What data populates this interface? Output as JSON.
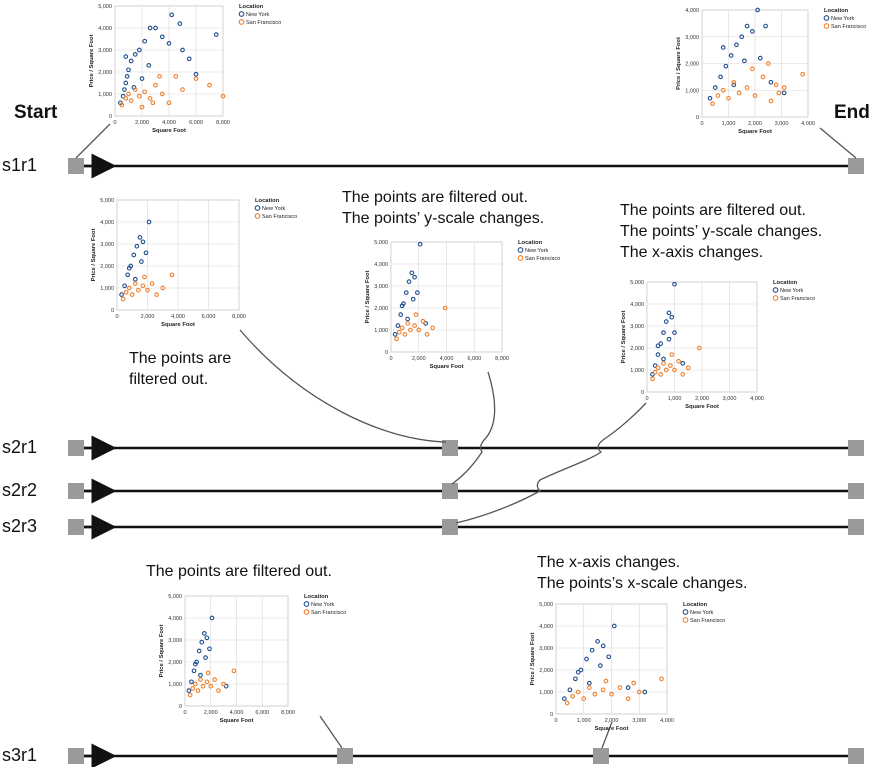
{
  "labels": {
    "start": "Start",
    "end": "End"
  },
  "rows": [
    "s1r1",
    "s2r1",
    "s2r2",
    "s2r3",
    "s3r1"
  ],
  "captions": {
    "c_s2_left": [
      "The points are",
      "filtered out."
    ],
    "c_s2_mid": [
      "The points are filtered out.",
      "The points’ y-scale changes."
    ],
    "c_s2_right": [
      "The points are filtered out.",
      "The points’ y-scale changes.",
      "The x-axis changes."
    ],
    "c_s3_left": [
      "The points are filtered out."
    ],
    "c_s3_right": [
      "The x-axis changes.",
      "The points’s x-scale changes."
    ]
  },
  "chart_common": {
    "x_label": "Square Foot",
    "y_label": "Price / Square Foot",
    "legend_title": "Location",
    "legend_items": [
      "New York",
      "San Francisco"
    ],
    "colors": {
      "new_york": "#1f4e8c",
      "san_francisco": "#f07f2a"
    }
  },
  "chart_data": [
    {
      "id": "start",
      "type": "scatter",
      "xlim": [
        0,
        8000
      ],
      "ylim": [
        0,
        5000
      ],
      "x_ticks": [
        "0",
        "2,000",
        "4,000",
        "6,000",
        "8,000"
      ],
      "y_ticks": [
        "0",
        "1,000",
        "2,000",
        "3,000",
        "4,000",
        "5,000"
      ],
      "series": [
        {
          "name": "New York",
          "points": [
            [
              400,
              600
            ],
            [
              600,
              900
            ],
            [
              700,
              1200
            ],
            [
              800,
              1500
            ],
            [
              900,
              1800
            ],
            [
              1000,
              2100
            ],
            [
              1200,
              2500
            ],
            [
              1500,
              2800
            ],
            [
              1800,
              3000
            ],
            [
              2200,
              3400
            ],
            [
              2600,
              4000
            ],
            [
              3000,
              4000
            ],
            [
              3500,
              3600
            ],
            [
              4000,
              3300
            ],
            [
              4200,
              4600
            ],
            [
              4800,
              4200
            ],
            [
              5000,
              3000
            ],
            [
              5500,
              2600
            ],
            [
              6000,
              1900
            ],
            [
              7500,
              3700
            ],
            [
              800,
              2700
            ],
            [
              1400,
              1300
            ],
            [
              2000,
              1700
            ],
            [
              2500,
              2300
            ]
          ]
        },
        {
          "name": "San Francisco",
          "points": [
            [
              500,
              500
            ],
            [
              800,
              800
            ],
            [
              1000,
              1000
            ],
            [
              1200,
              700
            ],
            [
              1500,
              1200
            ],
            [
              1800,
              900
            ],
            [
              2200,
              1100
            ],
            [
              2600,
              800
            ],
            [
              3000,
              1400
            ],
            [
              3500,
              1000
            ],
            [
              4000,
              600
            ],
            [
              4500,
              1800
            ],
            [
              5000,
              1200
            ],
            [
              6000,
              1700
            ],
            [
              7000,
              1400
            ],
            [
              8000,
              900
            ],
            [
              2000,
              400
            ],
            [
              2800,
              600
            ],
            [
              3300,
              1800
            ]
          ]
        }
      ]
    },
    {
      "id": "end",
      "type": "scatter",
      "xlim": [
        0,
        4000
      ],
      "ylim": [
        0,
        4000
      ],
      "x_ticks": [
        "0",
        "1,000",
        "2,000",
        "3,000",
        "4,000"
      ],
      "y_ticks": [
        "0",
        "1,000",
        "2,000",
        "3,000",
        "4,000"
      ],
      "series": [
        {
          "name": "New York",
          "points": [
            [
              300,
              700
            ],
            [
              500,
              1100
            ],
            [
              700,
              1500
            ],
            [
              900,
              1900
            ],
            [
              1100,
              2300
            ],
            [
              1300,
              2700
            ],
            [
              1500,
              3000
            ],
            [
              1700,
              3400
            ],
            [
              1900,
              3200
            ],
            [
              2100,
              4000
            ],
            [
              2200,
              2200
            ],
            [
              2600,
              1300
            ],
            [
              2400,
              3400
            ],
            [
              3100,
              900
            ],
            [
              800,
              2600
            ],
            [
              1200,
              1200
            ],
            [
              1600,
              2100
            ]
          ]
        },
        {
          "name": "San Francisco",
          "points": [
            [
              400,
              500
            ],
            [
              600,
              800
            ],
            [
              800,
              1000
            ],
            [
              1000,
              700
            ],
            [
              1200,
              1300
            ],
            [
              1400,
              900
            ],
            [
              1700,
              1100
            ],
            [
              2000,
              800
            ],
            [
              2300,
              1500
            ],
            [
              2600,
              600
            ],
            [
              2800,
              1200
            ],
            [
              3100,
              1100
            ],
            [
              3800,
              1600
            ],
            [
              1900,
              1800
            ],
            [
              2500,
              2000
            ],
            [
              2900,
              900
            ]
          ]
        }
      ]
    },
    {
      "id": "s2_left",
      "type": "scatter",
      "xlim": [
        0,
        8000
      ],
      "ylim": [
        0,
        5000
      ],
      "x_ticks": [
        "0",
        "2,000",
        "4,000",
        "6,000",
        "8,000"
      ],
      "y_ticks": [
        "0",
        "1,000",
        "2,000",
        "3,000",
        "4,000",
        "5,000"
      ],
      "series": [
        {
          "name": "New York",
          "points": [
            [
              300,
              700
            ],
            [
              500,
              1100
            ],
            [
              700,
              1600
            ],
            [
              900,
              2000
            ],
            [
              1100,
              2500
            ],
            [
              1300,
              2900
            ],
            [
              1500,
              3300
            ],
            [
              1700,
              3100
            ],
            [
              1900,
              2600
            ],
            [
              2100,
              4000
            ],
            [
              1200,
              1400
            ],
            [
              800,
              1900
            ],
            [
              1600,
              2200
            ]
          ]
        },
        {
          "name": "San Francisco",
          "points": [
            [
              400,
              500
            ],
            [
              600,
              800
            ],
            [
              800,
              1000
            ],
            [
              1000,
              700
            ],
            [
              1200,
              1200
            ],
            [
              1400,
              900
            ],
            [
              1700,
              1100
            ],
            [
              2000,
              900
            ],
            [
              2300,
              1200
            ],
            [
              2600,
              700
            ],
            [
              3000,
              1000
            ],
            [
              3600,
              1600
            ],
            [
              1800,
              1500
            ]
          ]
        }
      ]
    },
    {
      "id": "s2_mid",
      "type": "scatter",
      "xlim": [
        0,
        8000
      ],
      "ylim": [
        0,
        5000
      ],
      "x_ticks": [
        "0",
        "2,000",
        "4,000",
        "6,000",
        "8,000"
      ],
      "y_ticks": [
        "0",
        "1,000",
        "2,000",
        "3,000",
        "4,000",
        "5,000"
      ],
      "series": [
        {
          "name": "New York",
          "points": [
            [
              300,
              800
            ],
            [
              500,
              1200
            ],
            [
              700,
              1700
            ],
            [
              900,
              2200
            ],
            [
              1100,
              2700
            ],
            [
              1300,
              3200
            ],
            [
              1500,
              3600
            ],
            [
              1700,
              3400
            ],
            [
              1900,
              2700
            ],
            [
              2100,
              4900
            ],
            [
              1200,
              1500
            ],
            [
              800,
              2100
            ],
            [
              1600,
              2400
            ],
            [
              2500,
              1300
            ]
          ]
        },
        {
          "name": "San Francisco",
          "points": [
            [
              400,
              600
            ],
            [
              600,
              900
            ],
            [
              800,
              1100
            ],
            [
              1000,
              800
            ],
            [
              1200,
              1300
            ],
            [
              1400,
              1000
            ],
            [
              1700,
              1200
            ],
            [
              2000,
              1000
            ],
            [
              2300,
              1400
            ],
            [
              2600,
              800
            ],
            [
              3000,
              1100
            ],
            [
              3900,
              2000
            ],
            [
              1800,
              1700
            ]
          ]
        }
      ]
    },
    {
      "id": "s2_right",
      "type": "scatter",
      "xlim": [
        0,
        4000
      ],
      "ylim": [
        0,
        5000
      ],
      "x_ticks": [
        "0",
        "1,000",
        "2,000",
        "3,000",
        "4,000"
      ],
      "y_ticks": [
        "0",
        "1,000",
        "2,000",
        "3,000",
        "4,000",
        "5,000"
      ],
      "series": [
        {
          "name": "New York",
          "points": [
            [
              200,
              800
            ],
            [
              300,
              1200
            ],
            [
              400,
              1700
            ],
            [
              500,
              2200
            ],
            [
              600,
              2700
            ],
            [
              700,
              3200
            ],
            [
              800,
              3600
            ],
            [
              900,
              3400
            ],
            [
              1000,
              2700
            ],
            [
              1000,
              4900
            ],
            [
              600,
              1500
            ],
            [
              400,
              2100
            ],
            [
              800,
              2400
            ],
            [
              1300,
              1300
            ]
          ]
        },
        {
          "name": "San Francisco",
          "points": [
            [
              200,
              600
            ],
            [
              300,
              900
            ],
            [
              400,
              1100
            ],
            [
              500,
              800
            ],
            [
              600,
              1300
            ],
            [
              700,
              1000
            ],
            [
              850,
              1200
            ],
            [
              1000,
              1000
            ],
            [
              1150,
              1400
            ],
            [
              1300,
              800
            ],
            [
              1500,
              1100
            ],
            [
              1900,
              2000
            ],
            [
              900,
              1700
            ]
          ]
        }
      ]
    },
    {
      "id": "s3_left",
      "type": "scatter",
      "xlim": [
        0,
        8000
      ],
      "ylim": [
        0,
        5000
      ],
      "x_ticks": [
        "0",
        "2,000",
        "4,000",
        "6,000",
        "8,000"
      ],
      "y_ticks": [
        "0",
        "1,000",
        "2,000",
        "3,000",
        "4,000",
        "5,000"
      ],
      "series": [
        {
          "name": "New York",
          "points": [
            [
              300,
              700
            ],
            [
              500,
              1100
            ],
            [
              700,
              1600
            ],
            [
              900,
              2000
            ],
            [
              1100,
              2500
            ],
            [
              1300,
              2900
            ],
            [
              1500,
              3300
            ],
            [
              1700,
              3100
            ],
            [
              1900,
              2600
            ],
            [
              2100,
              4000
            ],
            [
              1200,
              1400
            ],
            [
              800,
              1900
            ],
            [
              1600,
              2200
            ],
            [
              3200,
              900
            ]
          ]
        },
        {
          "name": "San Francisco",
          "points": [
            [
              400,
              500
            ],
            [
              600,
              800
            ],
            [
              800,
              1000
            ],
            [
              1000,
              700
            ],
            [
              1200,
              1200
            ],
            [
              1400,
              900
            ],
            [
              1700,
              1100
            ],
            [
              2000,
              900
            ],
            [
              2300,
              1200
            ],
            [
              2600,
              700
            ],
            [
              3000,
              1000
            ],
            [
              3800,
              1600
            ],
            [
              1800,
              1500
            ]
          ]
        }
      ]
    },
    {
      "id": "s3_right",
      "type": "scatter",
      "xlim": [
        0,
        4000
      ],
      "ylim": [
        0,
        5000
      ],
      "x_ticks": [
        "0",
        "1,000",
        "2,000",
        "3,000",
        "4,000"
      ],
      "y_ticks": [
        "0",
        "1,000",
        "2,000",
        "3,000",
        "4,000",
        "5,000"
      ],
      "series": [
        {
          "name": "New York",
          "points": [
            [
              300,
              700
            ],
            [
              500,
              1100
            ],
            [
              700,
              1600
            ],
            [
              900,
              2000
            ],
            [
              1100,
              2500
            ],
            [
              1300,
              2900
            ],
            [
              1500,
              3300
            ],
            [
              1700,
              3100
            ],
            [
              1900,
              2600
            ],
            [
              2100,
              4000
            ],
            [
              1200,
              1400
            ],
            [
              800,
              1900
            ],
            [
              1600,
              2200
            ],
            [
              3200,
              1000
            ],
            [
              2600,
              1200
            ]
          ]
        },
        {
          "name": "San Francisco",
          "points": [
            [
              400,
              500
            ],
            [
              600,
              800
            ],
            [
              800,
              1000
            ],
            [
              1000,
              700
            ],
            [
              1200,
              1200
            ],
            [
              1400,
              900
            ],
            [
              1700,
              1100
            ],
            [
              2000,
              900
            ],
            [
              2300,
              1200
            ],
            [
              2600,
              700
            ],
            [
              3000,
              1000
            ],
            [
              3800,
              1600
            ],
            [
              1800,
              1500
            ],
            [
              2800,
              1400
            ]
          ]
        }
      ]
    }
  ]
}
